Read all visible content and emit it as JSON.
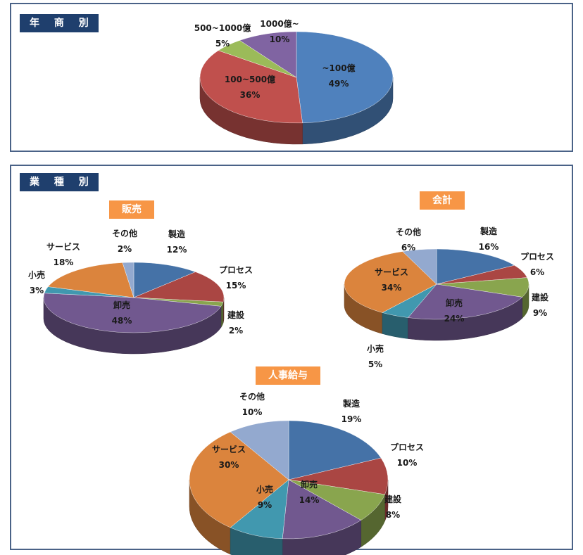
{
  "sections": {
    "annual_sales_label": "年 商 別",
    "industry_label": "業 種 別"
  },
  "chart_data": [
    {
      "type": "pie",
      "title": "年商別",
      "slices": [
        {
          "label": "~100億",
          "value": 49,
          "value_text": "49%",
          "color": "#4f81bd"
        },
        {
          "label": "100~500億",
          "value": 36,
          "value_text": "36%",
          "color": "#c0504d"
        },
        {
          "label": "500~1000億",
          "value": 5,
          "value_text": "5%",
          "color": "#9bbb59"
        },
        {
          "label": "1000億~",
          "value": 10,
          "value_text": "10%",
          "color": "#8064a2"
        }
      ]
    },
    {
      "type": "pie",
      "title": "販売",
      "slices": [
        {
          "label": "製造",
          "value": 12,
          "value_text": "12%",
          "color": "#4572a7"
        },
        {
          "label": "プロセス",
          "value": 15,
          "value_text": "15%",
          "color": "#aa4643"
        },
        {
          "label": "建設",
          "value": 2,
          "value_text": "2%",
          "color": "#89a54e"
        },
        {
          "label": "卸売",
          "value": 48,
          "value_text": "48%",
          "color": "#71588f"
        },
        {
          "label": "小売",
          "value": 3,
          "value_text": "3%",
          "color": "#4198af"
        },
        {
          "label": "サービス",
          "value": 18,
          "value_text": "18%",
          "color": "#db843d"
        },
        {
          "label": "その他",
          "value": 2,
          "value_text": "2%",
          "color": "#93a9cf"
        }
      ]
    },
    {
      "type": "pie",
      "title": "会計",
      "slices": [
        {
          "label": "製造",
          "value": 16,
          "value_text": "16%",
          "color": "#4572a7"
        },
        {
          "label": "プロセス",
          "value": 6,
          "value_text": "6%",
          "color": "#aa4643"
        },
        {
          "label": "建設",
          "value": 9,
          "value_text": "9%",
          "color": "#89a54e"
        },
        {
          "label": "卸売",
          "value": 24,
          "value_text": "24%",
          "color": "#71588f"
        },
        {
          "label": "小売",
          "value": 5,
          "value_text": "5%",
          "color": "#4198af"
        },
        {
          "label": "サービス",
          "value": 34,
          "value_text": "34%",
          "color": "#db843d"
        },
        {
          "label": "その他",
          "value": 6,
          "value_text": "6%",
          "color": "#93a9cf"
        }
      ]
    },
    {
      "type": "pie",
      "title": "人事給与",
      "slices": [
        {
          "label": "製造",
          "value": 19,
          "value_text": "19%",
          "color": "#4572a7"
        },
        {
          "label": "プロセス",
          "value": 10,
          "value_text": "10%",
          "color": "#aa4643"
        },
        {
          "label": "建設",
          "value": 8,
          "value_text": "8%",
          "color": "#89a54e"
        },
        {
          "label": "卸売",
          "value": 14,
          "value_text": "14%",
          "color": "#71588f"
        },
        {
          "label": "小売",
          "value": 9,
          "value_text": "9%",
          "color": "#4198af"
        },
        {
          "label": "サービス",
          "value": 30,
          "value_text": "30%",
          "color": "#db843d"
        },
        {
          "label": "その他",
          "value": 10,
          "value_text": "10%",
          "color": "#93a9cf"
        }
      ]
    }
  ]
}
